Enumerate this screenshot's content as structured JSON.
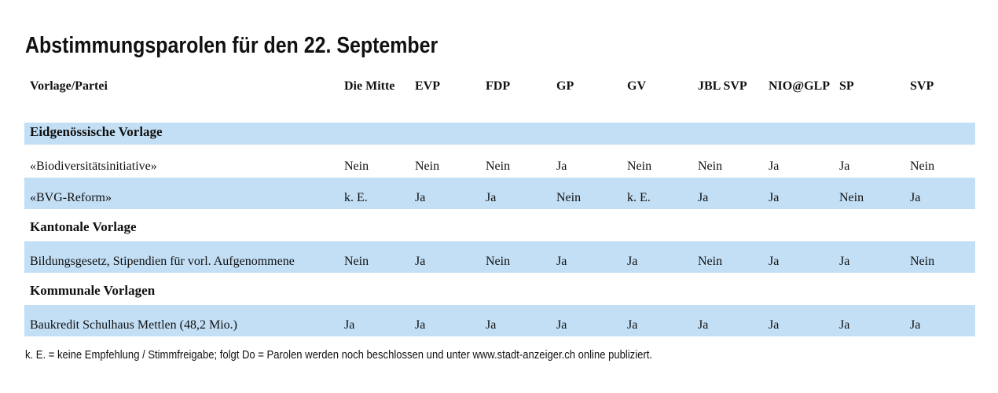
{
  "title": "Abstimmungsparolen für den 22. September",
  "header": [
    "Vorlage/Partei",
    "Die Mitte",
    "EVP",
    "FDP",
    "GP",
    "GV",
    "JBL SVP",
    "NIO@GLP",
    "SP",
    "SVP"
  ],
  "sections": [
    {
      "label": "Eidgenössische Vorlage",
      "rows": [
        {
          "label": "«Biodiversitätsinitiative»",
          "values": [
            "Nein",
            "Nein",
            "Nein",
            "Ja",
            "Nein",
            "Nein",
            "Ja",
            "Ja",
            "Nein"
          ]
        },
        {
          "label": "«BVG-Reform»",
          "values": [
            "k. E.",
            "Ja",
            "Ja",
            "Nein",
            "k. E.",
            "Ja",
            "Ja",
            "Nein",
            "Ja"
          ]
        }
      ]
    },
    {
      "label": "Kantonale Vorlage",
      "rows": [
        {
          "label": "Bildungsgesetz, Stipendien für vorl. Aufgenommene",
          "values": [
            "Nein",
            "Ja",
            "Nein",
            "Ja",
            "Ja",
            "Nein",
            "Ja",
            "Ja",
            "Nein"
          ]
        }
      ]
    },
    {
      "label": "Kommunale Vorlagen",
      "rows": [
        {
          "label": "Baukredit Schulhaus Mettlen (48,2 Mio.)",
          "values": [
            "Ja",
            "Ja",
            "Ja",
            "Ja",
            "Ja",
            "Ja",
            "Ja",
            "Ja",
            "Ja"
          ]
        }
      ]
    }
  ],
  "footnote": "k. E. = keine Empfehlung / Stimmfreigabe; folgt Do = Parolen werden noch beschlossen und unter www.stadt-anzeiger.ch online publiziert.",
  "colors": {
    "band": "#c3dff5",
    "text": "#111111"
  }
}
